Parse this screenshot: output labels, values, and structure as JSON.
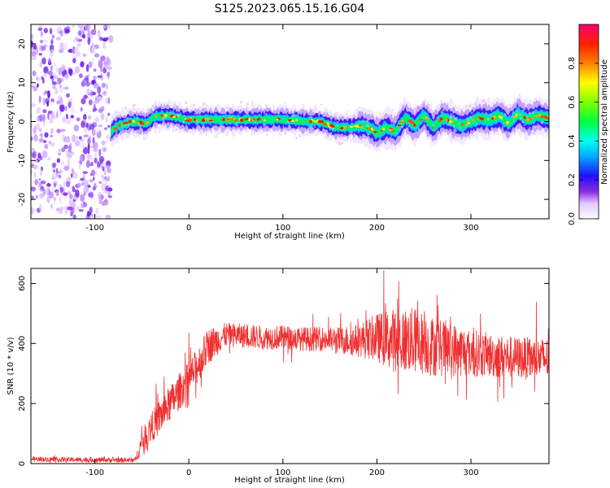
{
  "title": "S125.2023.065.15.16.G04",
  "chart_data": [
    {
      "type": "heatmap",
      "title": "",
      "xlabel": "Height of straight line (km)",
      "ylabel": "Frequency (Hz)",
      "xlim": [
        -168,
        383
      ],
      "ylim": [
        -25,
        25
      ],
      "xticks": [
        -100,
        0,
        100,
        200,
        300
      ],
      "yticks": [
        -20,
        -10,
        0,
        10,
        20
      ],
      "noise_region_x": [
        -168,
        -83
      ],
      "ridge": {
        "x": [
          -83,
          -75,
          -60,
          -45,
          -35,
          -20,
          0,
          25,
          50,
          75,
          100,
          125,
          140,
          155,
          170,
          185,
          195,
          200,
          210,
          220,
          230,
          240,
          250,
          260,
          270,
          280,
          290,
          300,
          310,
          320,
          330,
          340,
          350,
          360,
          370,
          383
        ],
        "frequency": [
          -2.5,
          -1,
          0,
          -0.5,
          1.5,
          1.5,
          0.5,
          0.5,
          0.5,
          0.5,
          0.5,
          0,
          0,
          -1.5,
          -1.5,
          -1,
          -2,
          -3,
          -1.5,
          -2.5,
          1,
          -1,
          1.5,
          -1.5,
          1,
          0,
          -1,
          0,
          1,
          0.5,
          1.5,
          -0.5,
          2,
          0.5,
          1.5,
          1
        ]
      },
      "colorbar": {
        "label": "Normalized spectral amplitude",
        "range": [
          0,
          1
        ],
        "ticks": [
          0.0,
          0.2,
          0.4,
          0.6,
          0.8
        ],
        "tick_labels": [
          "0.0",
          "0.2",
          "0.4",
          "0.6",
          "0.8"
        ]
      }
    },
    {
      "type": "line",
      "title": "",
      "xlabel": "Height of straight line (km)",
      "ylabel": "SNR (10 * v/v)",
      "xlim": [
        -168,
        383
      ],
      "ylim": [
        0,
        650
      ],
      "xticks": [
        -100,
        0,
        100,
        200,
        300
      ],
      "yticks": [
        0,
        200,
        400,
        600
      ],
      "color": "#f03030",
      "series": [
        {
          "x": [
            -168,
            -100,
            -57,
            -50,
            -40,
            -30,
            -20,
            -10,
            0,
            10,
            20,
            30,
            40,
            60,
            80,
            100,
            120,
            140,
            160,
            180,
            200,
            220,
            240,
            260,
            280,
            300,
            320,
            340,
            360,
            383
          ],
          "y": [
            15,
            12,
            12,
            70,
            120,
            160,
            200,
            240,
            280,
            330,
            390,
            410,
            430,
            425,
            420,
            420,
            415,
            415,
            410,
            410,
            420,
            410,
            410,
            390,
            380,
            370,
            360,
            355,
            350,
            350
          ],
          "spread": [
            8,
            8,
            8,
            40,
            50,
            60,
            60,
            60,
            60,
            60,
            60,
            50,
            40,
            40,
            40,
            40,
            40,
            40,
            45,
            55,
            80,
            110,
            110,
            100,
            90,
            80,
            75,
            70,
            70,
            70
          ]
        }
      ]
    }
  ]
}
